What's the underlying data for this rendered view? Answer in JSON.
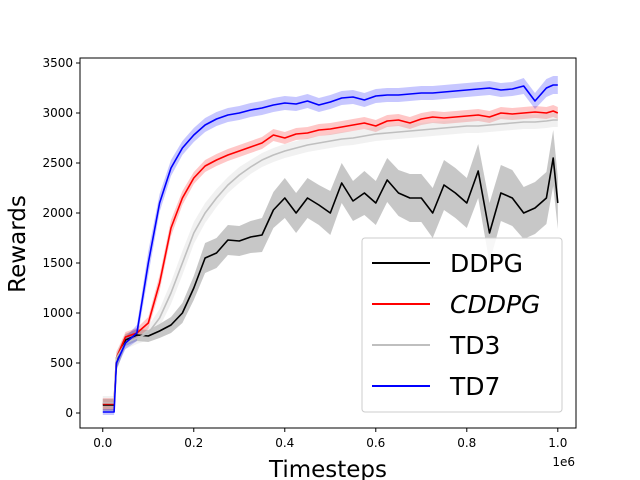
{
  "chart_data": {
    "type": "line",
    "title": "",
    "xlabel": "Timesteps",
    "ylabel": "Rewards",
    "x_offset_label": "1e6",
    "xlim": [
      -0.05,
      1.04
    ],
    "ylim": [
      -150,
      3550
    ],
    "xticks": [
      0.0,
      0.2,
      0.4,
      0.6,
      0.8,
      1.0
    ],
    "xtick_labels": [
      "0.0",
      "0.2",
      "0.4",
      "0.6",
      "0.8",
      "1.0"
    ],
    "yticks": [
      0,
      500,
      1000,
      1500,
      2000,
      2500,
      3000,
      3500
    ],
    "ytick_labels": [
      "0",
      "500",
      "1000",
      "1500",
      "2000",
      "2500",
      "3000",
      "3500"
    ],
    "legend_position": "lower-right",
    "x": [
      0.0,
      0.025,
      0.03,
      0.05,
      0.075,
      0.1,
      0.125,
      0.15,
      0.175,
      0.2,
      0.225,
      0.25,
      0.275,
      0.3,
      0.325,
      0.35,
      0.375,
      0.4,
      0.425,
      0.45,
      0.475,
      0.5,
      0.525,
      0.55,
      0.575,
      0.6,
      0.625,
      0.65,
      0.675,
      0.7,
      0.725,
      0.75,
      0.775,
      0.8,
      0.825,
      0.85,
      0.875,
      0.9,
      0.925,
      0.95,
      0.975,
      0.99,
      1.0
    ],
    "series": [
      {
        "name": "DDPG",
        "color": "#000000",
        "italic": false,
        "values": [
          80,
          80,
          500,
          730,
          780,
          770,
          820,
          880,
          1000,
          1250,
          1550,
          1600,
          1730,
          1720,
          1760,
          1780,
          2030,
          2150,
          2000,
          2150,
          2080,
          2000,
          2300,
          2120,
          2200,
          2100,
          2330,
          2200,
          2150,
          2150,
          2000,
          2280,
          2200,
          2100,
          2420,
          1800,
          2200,
          2150,
          2000,
          2050,
          2150,
          2550,
          2100
        ],
        "band": [
          60,
          60,
          80,
          60,
          60,
          60,
          70,
          80,
          100,
          120,
          150,
          150,
          150,
          150,
          160,
          170,
          180,
          200,
          200,
          200,
          200,
          220,
          200,
          200,
          220,
          220,
          220,
          230,
          240,
          240,
          250,
          250,
          250,
          250,
          270,
          300,
          280,
          280,
          260,
          260,
          260,
          280,
          260
        ]
      },
      {
        "name": "CDDPG",
        "color": "#ff0000",
        "italic": true,
        "values": [
          90,
          90,
          550,
          760,
          800,
          900,
          1300,
          1850,
          2150,
          2350,
          2470,
          2530,
          2580,
          2620,
          2660,
          2700,
          2780,
          2750,
          2790,
          2800,
          2830,
          2840,
          2860,
          2880,
          2900,
          2870,
          2920,
          2930,
          2900,
          2940,
          2960,
          2950,
          2960,
          2970,
          2980,
          2960,
          3000,
          2990,
          3000,
          3010,
          3000,
          3020,
          3000
        ],
        "band": [
          60,
          60,
          60,
          50,
          50,
          60,
          80,
          80,
          70,
          60,
          60,
          60,
          60,
          60,
          60,
          60,
          60,
          60,
          60,
          60,
          60,
          60,
          60,
          60,
          60,
          60,
          60,
          60,
          60,
          60,
          60,
          60,
          60,
          60,
          60,
          60,
          60,
          60,
          60,
          60,
          60,
          60,
          60
        ]
      },
      {
        "name": "TD3",
        "color": "#bfbfbf",
        "italic": false,
        "values": [
          100,
          100,
          550,
          700,
          750,
          800,
          950,
          1200,
          1500,
          1800,
          2000,
          2150,
          2280,
          2380,
          2460,
          2530,
          2580,
          2620,
          2650,
          2680,
          2700,
          2720,
          2740,
          2750,
          2770,
          2790,
          2800,
          2810,
          2820,
          2830,
          2840,
          2850,
          2860,
          2870,
          2870,
          2880,
          2890,
          2900,
          2910,
          2910,
          2920,
          2930,
          2930
        ],
        "band": [
          70,
          70,
          70,
          60,
          60,
          70,
          90,
          110,
          120,
          110,
          100,
          90,
          80,
          80,
          70,
          70,
          70,
          70,
          70,
          70,
          70,
          70,
          70,
          70,
          70,
          70,
          70,
          70,
          70,
          70,
          70,
          70,
          70,
          70,
          70,
          70,
          70,
          70,
          70,
          70,
          70,
          70,
          70
        ]
      },
      {
        "name": "TD7",
        "color": "#0000ff",
        "italic": false,
        "values": [
          10,
          10,
          500,
          700,
          800,
          1500,
          2100,
          2450,
          2650,
          2780,
          2880,
          2940,
          2980,
          3000,
          3030,
          3050,
          3080,
          3100,
          3090,
          3120,
          3080,
          3110,
          3150,
          3160,
          3130,
          3170,
          3180,
          3180,
          3190,
          3200,
          3200,
          3210,
          3220,
          3230,
          3240,
          3250,
          3230,
          3240,
          3270,
          3120,
          3250,
          3280,
          3280
        ],
        "band": [
          30,
          30,
          60,
          60,
          80,
          120,
          90,
          80,
          70,
          70,
          70,
          70,
          70,
          70,
          70,
          70,
          70,
          70,
          70,
          70,
          70,
          70,
          70,
          70,
          70,
          70,
          70,
          70,
          70,
          70,
          70,
          70,
          70,
          70,
          70,
          70,
          70,
          70,
          80,
          80,
          90,
          90,
          90
        ]
      }
    ]
  }
}
